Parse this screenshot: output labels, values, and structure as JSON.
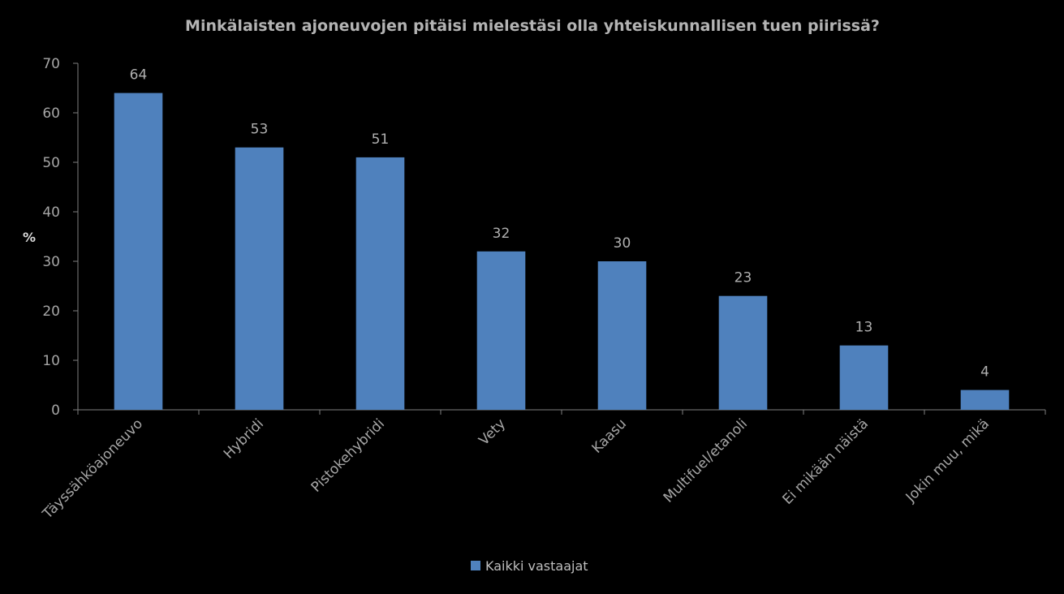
{
  "chart_data": {
    "type": "bar",
    "title": "Minkälaisten ajoneuvojen pitäisi mielestäsi olla yhteiskunnallisen tuen piirissä?",
    "ylabel": "%",
    "xlabel": "",
    "ylim": [
      0,
      70
    ],
    "yticks": [
      0,
      10,
      20,
      30,
      40,
      50,
      60,
      70
    ],
    "categories": [
      "Täyssähköajoneuvo",
      "Hybridi",
      "Pistokehybridi",
      "Vety",
      "Kaasu",
      "Multifuel/etanoli",
      "Ei mikään näistä",
      "Jokin muu, mikä"
    ],
    "series": [
      {
        "name": "Kaikki vastaajat",
        "values": [
          64,
          53,
          51,
          32,
          30,
          23,
          13,
          4
        ],
        "color": "#4f81bd"
      }
    ],
    "grid": false,
    "legend_position": "bottom",
    "data_labels": true
  },
  "colors": {
    "background": "#000000",
    "axis": "#7f7f7f",
    "bar": "#4f81bd"
  }
}
